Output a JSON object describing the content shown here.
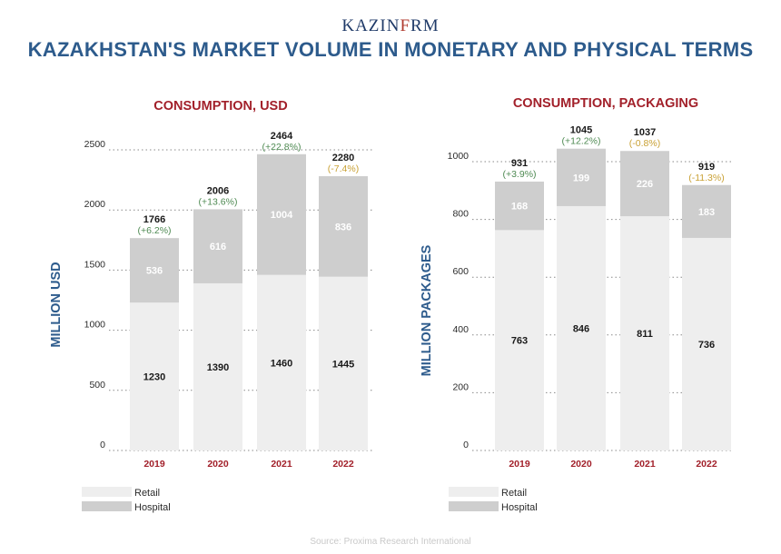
{
  "header": {
    "logo_part1": "KAZIN",
    "logo_part2": "F",
    "logo_part3": "RM",
    "title": "KAZAKHSTAN'S MARKET VOLUME IN MONETARY AND PHYSICAL TERMS"
  },
  "source": "Source: Proxima Research International",
  "colors": {
    "retail": "#eeeeee",
    "hospital": "#cecece",
    "title_blue": "#2d5b8c",
    "title_red": "#a2202a",
    "growth_positive": "#4e8a52",
    "growth_negative": "#c9a135"
  },
  "chart_data": [
    {
      "type": "bar",
      "stacked": true,
      "title": "CONSUMPTION, USD",
      "ylabel": "MILLION USD",
      "ylim": [
        0,
        2500
      ],
      "yticks": [
        "0",
        "500",
        "1000",
        "1500",
        "2000",
        "2500"
      ],
      "categories": [
        "2019",
        "2020",
        "2021",
        "2022"
      ],
      "series": [
        {
          "name": "Retail",
          "values": [
            1230,
            1390,
            1460,
            1445
          ]
        },
        {
          "name": "Hospital",
          "values": [
            536,
            616,
            1004,
            836
          ]
        }
      ],
      "totals": [
        "1766",
        "2006",
        "2464",
        "2280"
      ],
      "growth": [
        "(+6.2%)",
        "(+13.6%)",
        "(+22.8%)",
        "(-7.4%)"
      ],
      "legend": [
        "Retail",
        "Hospital"
      ],
      "legend_position": "bottom-left",
      "grid": "dotted horizontal"
    },
    {
      "type": "bar",
      "stacked": true,
      "title": "CONSUMPTION, PACKAGING",
      "ylabel": "MILLION PACKAGES",
      "ylim": [
        0,
        1000
      ],
      "yticks": [
        "0",
        "200",
        "400",
        "600",
        "800",
        "1000"
      ],
      "categories": [
        "2019",
        "2020",
        "2021",
        "2022"
      ],
      "series": [
        {
          "name": "Retail",
          "values": [
            763,
            846,
            811,
            736
          ]
        },
        {
          "name": "Hospital",
          "values": [
            168,
            199,
            226,
            183
          ]
        }
      ],
      "totals": [
        "931",
        "1045",
        "1037",
        "919"
      ],
      "growth": [
        "(+3.9%)",
        "(+12.2%)",
        "(-0.8%)",
        "(-11.3%)"
      ],
      "legend": [
        "Retail",
        "Hospital"
      ],
      "legend_position": "bottom-left",
      "grid": "dotted horizontal"
    }
  ]
}
